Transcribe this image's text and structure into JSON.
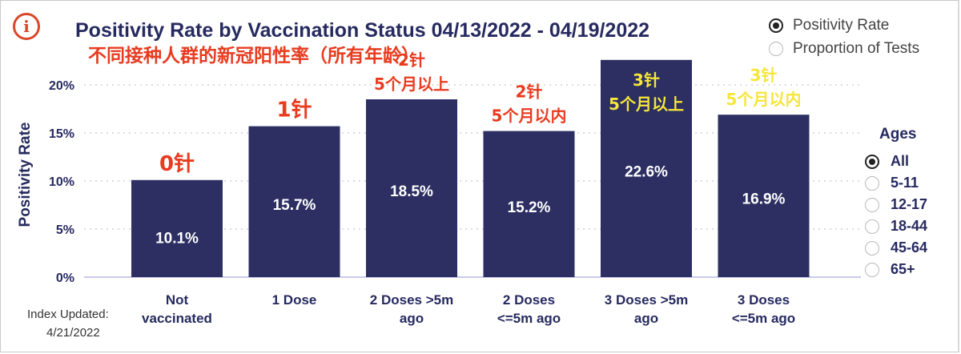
{
  "header": {
    "title": "Positivity Rate by Vaccination Status 04/13/2022 - 04/19/2022",
    "subtitle": "不同接种人群的新冠阳性率（所有年龄）",
    "info_icon": "info-icon"
  },
  "metric_toggle": {
    "options": [
      {
        "label": "Positivity Rate",
        "selected": true
      },
      {
        "label": "Proportion of Tests",
        "selected": false
      }
    ]
  },
  "ages_filter": {
    "title": "Ages",
    "options": [
      {
        "label": "All",
        "selected": true
      },
      {
        "label": "5-11",
        "selected": false
      },
      {
        "label": "12-17",
        "selected": false
      },
      {
        "label": "18-44",
        "selected": false
      },
      {
        "label": "45-64",
        "selected": false
      },
      {
        "label": "65+",
        "selected": false
      }
    ]
  },
  "footer": {
    "index_label": "Index Updated:",
    "index_date": "4/21/2022"
  },
  "colors": {
    "bar": "#2d2f63",
    "title": "#262a5f",
    "annotation_red": "#e83b1f",
    "annotation_yellow": "#f5e63a",
    "axis_text": "#262a5f",
    "baseline": "#c9c9ec"
  },
  "chart_data": {
    "type": "bar",
    "title": "Positivity Rate by Vaccination Status 04/13/2022 - 04/19/2022",
    "ylabel": "Positivity Rate",
    "xlabel": "",
    "ylim": [
      0,
      0.23
    ],
    "yticks": [
      0,
      0.05,
      0.1,
      0.15,
      0.2
    ],
    "yticklabels": [
      "0%",
      "5%",
      "10%",
      "15%",
      "20%"
    ],
    "grid": true,
    "categories": [
      [
        "Not",
        "vaccinated"
      ],
      [
        "1 Dose"
      ],
      [
        "2 Doses >5m",
        "ago"
      ],
      [
        "2 Doses",
        "<=5m ago"
      ],
      [
        "3 Doses >5m",
        "ago"
      ],
      [
        "3 Doses",
        "<=5m ago"
      ]
    ],
    "values": [
      0.101,
      0.157,
      0.185,
      0.152,
      0.226,
      0.169
    ],
    "data_labels": [
      "10.1%",
      "15.7%",
      "18.5%",
      "15.2%",
      "22.6%",
      "16.9%"
    ],
    "annotations": [
      {
        "lines": [
          "0针"
        ],
        "color": "red",
        "placement": "above"
      },
      {
        "lines": [
          "1针"
        ],
        "color": "red",
        "placement": "above"
      },
      {
        "lines": [
          "2针",
          "5个月以上"
        ],
        "color": "red",
        "placement": "above"
      },
      {
        "lines": [
          "2针",
          "5个月以内"
        ],
        "color": "red",
        "placement": "above"
      },
      {
        "lines": [
          "3针",
          "5个月以上"
        ],
        "color": "yellow",
        "placement": "inside"
      },
      {
        "lines": [
          "3针",
          "5个月以内"
        ],
        "color": "yellow",
        "placement": "above"
      }
    ]
  }
}
